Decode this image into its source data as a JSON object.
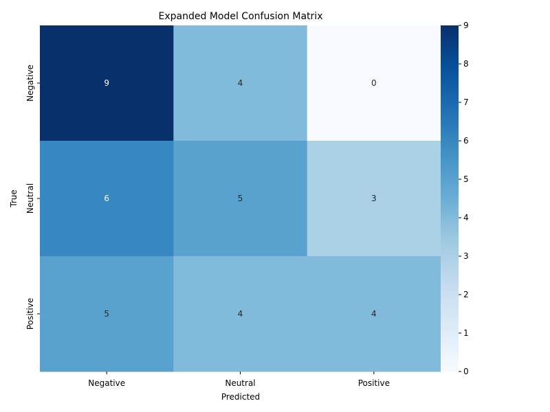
{
  "chart_data": {
    "type": "heatmap",
    "title": "Expanded Model Confusion Matrix",
    "xlabel": "Predicted",
    "ylabel": "True",
    "x_categories": [
      "Negative",
      "Neutral",
      "Positive"
    ],
    "y_categories": [
      "Negative",
      "Neutral",
      "Positive"
    ],
    "values": [
      [
        9,
        4,
        0
      ],
      [
        6,
        5,
        3
      ],
      [
        5,
        4,
        4
      ]
    ],
    "colorbar": {
      "min": 0,
      "max": 9,
      "ticks": [
        "0",
        "1",
        "2",
        "3",
        "4",
        "5",
        "6",
        "7",
        "8",
        "9"
      ],
      "colormap": "Blues"
    },
    "annotated": true
  }
}
